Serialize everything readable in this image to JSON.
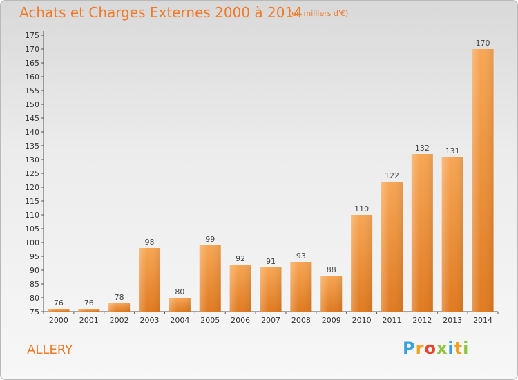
{
  "title": "Achats et Charges Externes 2000 à 2014",
  "subtitle": "(en milliers d'€)",
  "commune": "ALLERY",
  "logo": {
    "letters": [
      {
        "ch": "P",
        "color": "#3aa0dc"
      },
      {
        "ch": "r",
        "color": "#f4a21e"
      },
      {
        "ch": "o",
        "color": "#e8432d"
      },
      {
        "ch": "x",
        "color": "#8cc63f"
      },
      {
        "ch": "i",
        "color": "#3aa0dc"
      },
      {
        "ch": "t",
        "color": "#f4a21e"
      },
      {
        "ch": "i",
        "color": "#8cc63f"
      }
    ]
  },
  "chart_data": {
    "type": "bar",
    "categories": [
      "2000",
      "2001",
      "2002",
      "2003",
      "2004",
      "2005",
      "2006",
      "2007",
      "2008",
      "2009",
      "2010",
      "2011",
      "2012",
      "2013",
      "2014"
    ],
    "values": [
      76,
      76,
      78,
      98,
      80,
      99,
      92,
      91,
      93,
      88,
      110,
      122,
      132,
      131,
      170
    ],
    "ylim": [
      75,
      175
    ],
    "yticks": [
      75,
      80,
      85,
      90,
      95,
      100,
      105,
      110,
      115,
      120,
      125,
      130,
      135,
      140,
      145,
      150,
      155,
      160,
      165,
      170,
      175
    ],
    "grid": false,
    "bar_color": "#f5a04a",
    "bar_color_dark": "#e07a20"
  }
}
